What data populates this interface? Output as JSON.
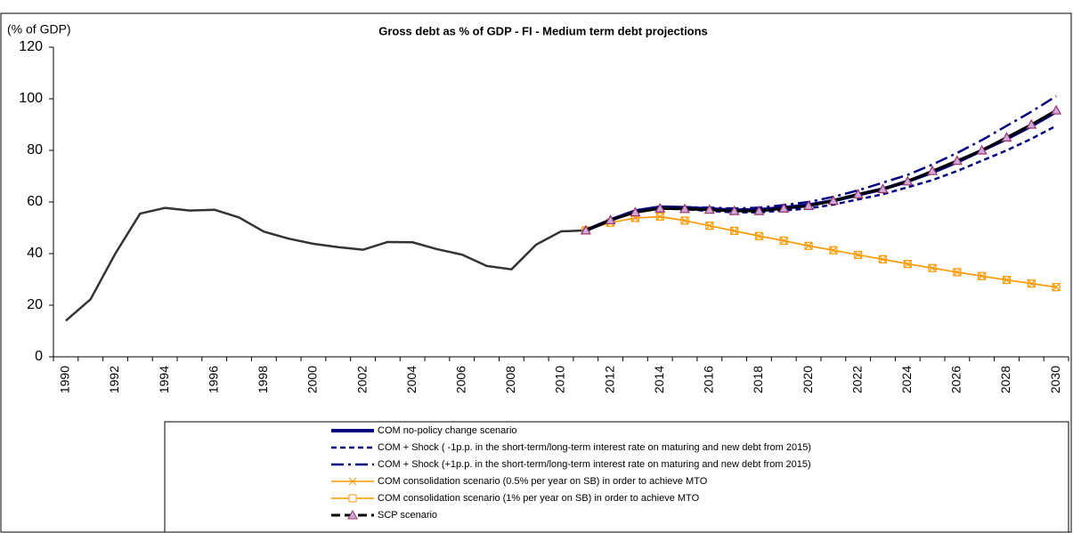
{
  "chart_data": {
    "type": "line",
    "title": "Gross debt as % of GDP - FI - Medium term debt projections",
    "y_label": "(% of GDP)",
    "categories": [
      "1990",
      null,
      "1992",
      null,
      "1994",
      null,
      "1996",
      null,
      "1998",
      null,
      "2000",
      null,
      "2002",
      null,
      "2004",
      null,
      "2006",
      null,
      "2008",
      null,
      "2010",
      null,
      "2012",
      null,
      "2014",
      null,
      "2016",
      null,
      "2018",
      null,
      "2020",
      null,
      "2022",
      null,
      "2024",
      null,
      "2026",
      null,
      "2028",
      null,
      "2030"
    ],
    "ylim": [
      0,
      120
    ],
    "yticks": [
      0,
      20,
      40,
      60,
      80,
      100,
      120
    ],
    "grid": false,
    "series": [
      {
        "color": "#333333",
        "width": 2.5,
        "dash": "solid",
        "values": [
          14,
          22.3,
          40,
          55.5,
          57.7,
          56.7,
          57,
          54,
          48.5,
          45.8,
          43.8,
          42.5,
          41.5,
          44.5,
          44.4,
          41.7,
          39.6,
          35.2,
          33.9,
          43.5,
          48.6,
          49,
          null,
          null,
          null,
          null,
          null,
          null,
          null,
          null,
          null,
          null,
          null,
          null,
          null,
          null,
          null,
          null,
          null,
          null,
          null
        ]
      },
      {
        "name": "COM consolidation scenario (0.5% per year on SB) in order to achieve MTO",
        "color": "#ff9900",
        "width": 1.5,
        "dash": "solid",
        "marker": "x",
        "values": [
          null,
          null,
          null,
          null,
          null,
          null,
          null,
          null,
          null,
          null,
          null,
          null,
          null,
          null,
          null,
          null,
          null,
          null,
          null,
          null,
          null,
          49,
          52,
          53.8,
          54.3,
          52.8,
          50.8,
          48.8,
          46.8,
          45,
          43,
          41.3,
          39.5,
          37.8,
          36,
          34.4,
          32.8,
          31.3,
          29.8,
          28.4,
          27
        ]
      },
      {
        "name": "COM consolidation scenario (1% per year on SB) in order to achieve MTO",
        "color": "#ff9900",
        "width": 1.5,
        "dash": "solid",
        "marker": "square",
        "values": [
          null,
          null,
          null,
          null,
          null,
          null,
          null,
          null,
          null,
          null,
          null,
          null,
          null,
          null,
          null,
          null,
          null,
          null,
          null,
          null,
          null,
          49,
          52,
          53.8,
          54.3,
          52.8,
          50.8,
          48.8,
          46.8,
          45,
          43,
          41.3,
          39.5,
          37.8,
          36,
          34.4,
          32.8,
          31.3,
          29.8,
          28.4,
          27
        ]
      },
      {
        "name": "COM + Shock ( -1p.p. in the short-term/long-term interest rate on maturing and new debt from 2015)",
        "color": "#000080",
        "width": 2.5,
        "dash": "dashed",
        "values": [
          null,
          null,
          null,
          null,
          null,
          null,
          null,
          null,
          null,
          null,
          null,
          null,
          null,
          null,
          null,
          null,
          null,
          null,
          null,
          null,
          null,
          49,
          53,
          56.3,
          57.5,
          57.2,
          56.5,
          56,
          56,
          56.7,
          57.5,
          59,
          61,
          63,
          65.7,
          68.5,
          72,
          76,
          80,
          84.5,
          89.5
        ]
      },
      {
        "name": "COM + Shock (+1p.p. in the short-term/long-term interest rate on maturing and new debt from 2015)",
        "color": "#000080",
        "width": 2.5,
        "dash": "dashdot",
        "values": [
          null,
          null,
          null,
          null,
          null,
          null,
          null,
          null,
          null,
          null,
          null,
          null,
          null,
          null,
          null,
          null,
          null,
          null,
          null,
          null,
          null,
          49,
          53,
          56.5,
          58,
          58,
          57.8,
          57.5,
          57.8,
          58.8,
          60,
          62,
          64.5,
          67.5,
          70.5,
          74.5,
          79,
          84,
          89.5,
          95,
          101
        ]
      },
      {
        "name": "COM no-policy change scenario",
        "color": "#000080",
        "width": 4,
        "dash": "solid",
        "values": [
          null,
          null,
          null,
          null,
          null,
          null,
          null,
          null,
          null,
          null,
          null,
          null,
          null,
          null,
          null,
          null,
          null,
          null,
          null,
          null,
          null,
          49,
          53,
          56.5,
          58,
          57.8,
          57.3,
          56.8,
          57,
          57.8,
          58.8,
          60.5,
          62.8,
          65,
          68,
          71.5,
          75.5,
          80,
          84.5,
          89.5,
          95
        ]
      },
      {
        "name": "SCP scenario",
        "color": "#000000",
        "width": 3,
        "dash": "longdash",
        "marker": "triangle",
        "marker_color": "#993366",
        "values": [
          null,
          null,
          null,
          null,
          null,
          null,
          null,
          null,
          null,
          null,
          null,
          null,
          null,
          null,
          null,
          null,
          null,
          null,
          null,
          null,
          null,
          49,
          53,
          56,
          57.5,
          57.3,
          57,
          56.5,
          56.5,
          57.5,
          58.5,
          60.5,
          63,
          65,
          68,
          72,
          76,
          80,
          85,
          90,
          95.5
        ]
      }
    ],
    "legend_order": [
      5,
      3,
      4,
      1,
      2,
      6
    ]
  }
}
